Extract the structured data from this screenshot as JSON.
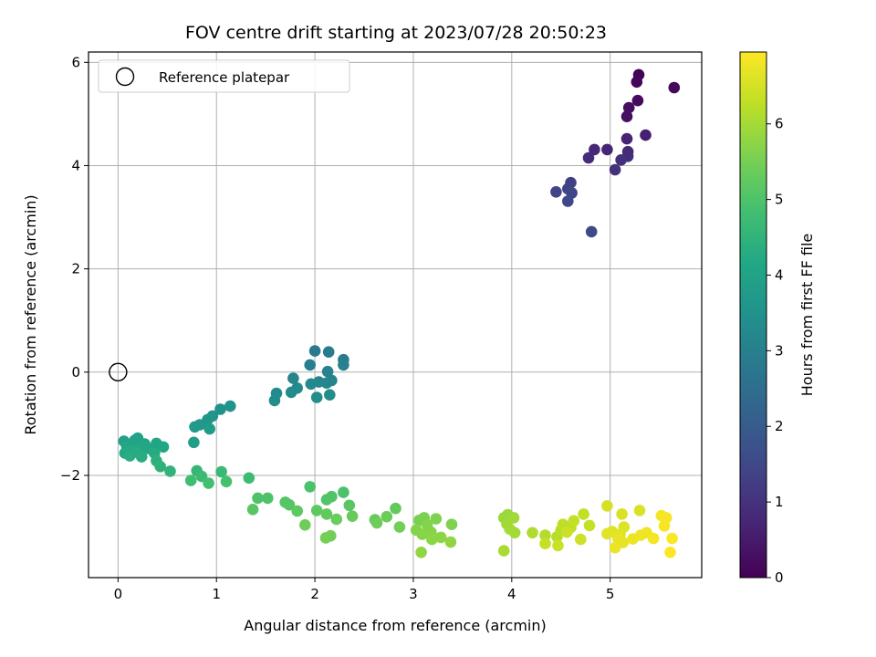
{
  "chart_data": {
    "type": "scatter",
    "title": "FOV centre drift starting at 2023/07/28 20:50:23",
    "xlabel": "Angular distance from reference (arcmin)",
    "ylabel": "Rotation from reference (arcmin)",
    "colorbar_label": "Hours from first FF file",
    "xlim": [
      -0.3,
      5.93
    ],
    "ylim": [
      -3.98,
      6.2
    ],
    "x_ticks": [
      0,
      1,
      2,
      3,
      4,
      5
    ],
    "y_ticks": [
      -2,
      0,
      2,
      4,
      6
    ],
    "y_tick_labels": [
      "−2",
      "0",
      "2",
      "4",
      "6"
    ],
    "colorbar_range": [
      0,
      6.95
    ],
    "colorbar_ticks": [
      0,
      1,
      2,
      3,
      4,
      5,
      6
    ],
    "colormap": "viridis",
    "grid": true,
    "legend": {
      "placement": "top-left",
      "entries": [
        {
          "label": "Reference platepar",
          "marker": "open-circle",
          "color": "#000000"
        }
      ]
    },
    "reference_point": {
      "x": 0,
      "y": 0
    },
    "points": [
      {
        "x": 5.29,
        "y": 5.76,
        "t": 0.05
      },
      {
        "x": 5.27,
        "y": 5.62,
        "t": 0.1
      },
      {
        "x": 5.65,
        "y": 5.51,
        "t": 0.15
      },
      {
        "x": 5.28,
        "y": 5.26,
        "t": 0.2
      },
      {
        "x": 5.19,
        "y": 5.12,
        "t": 0.25
      },
      {
        "x": 5.17,
        "y": 4.95,
        "t": 0.3
      },
      {
        "x": 5.36,
        "y": 4.59,
        "t": 0.6
      },
      {
        "x": 5.17,
        "y": 4.52,
        "t": 0.65
      },
      {
        "x": 4.97,
        "y": 4.31,
        "t": 0.7
      },
      {
        "x": 4.84,
        "y": 4.31,
        "t": 0.75
      },
      {
        "x": 5.18,
        "y": 4.27,
        "t": 0.8
      },
      {
        "x": 4.78,
        "y": 4.15,
        "t": 0.85
      },
      {
        "x": 5.18,
        "y": 4.18,
        "t": 0.9
      },
      {
        "x": 5.11,
        "y": 4.11,
        "t": 0.95
      },
      {
        "x": 5.05,
        "y": 3.92,
        "t": 1.0
      },
      {
        "x": 4.6,
        "y": 3.67,
        "t": 1.3
      },
      {
        "x": 4.57,
        "y": 3.55,
        "t": 1.35
      },
      {
        "x": 4.45,
        "y": 3.49,
        "t": 1.4
      },
      {
        "x": 4.61,
        "y": 3.47,
        "t": 1.45
      },
      {
        "x": 4.57,
        "y": 3.31,
        "t": 1.5
      },
      {
        "x": 4.81,
        "y": 2.72,
        "t": 1.55
      },
      {
        "x": 2.0,
        "y": 0.41,
        "t": 2.8
      },
      {
        "x": 2.14,
        "y": 0.39,
        "t": 2.85
      },
      {
        "x": 2.29,
        "y": 0.24,
        "t": 2.9
      },
      {
        "x": 1.95,
        "y": 0.14,
        "t": 2.95
      },
      {
        "x": 2.29,
        "y": 0.14,
        "t": 3.0
      },
      {
        "x": 2.13,
        "y": 0.01,
        "t": 3.05
      },
      {
        "x": 1.78,
        "y": -0.12,
        "t": 3.1
      },
      {
        "x": 2.17,
        "y": -0.16,
        "t": 3.15
      },
      {
        "x": 2.04,
        "y": -0.19,
        "t": 3.2
      },
      {
        "x": 2.12,
        "y": -0.21,
        "t": 3.2
      },
      {
        "x": 1.96,
        "y": -0.23,
        "t": 3.25
      },
      {
        "x": 1.82,
        "y": -0.31,
        "t": 3.25
      },
      {
        "x": 1.76,
        "y": -0.39,
        "t": 3.3
      },
      {
        "x": 1.61,
        "y": -0.41,
        "t": 3.3
      },
      {
        "x": 2.15,
        "y": -0.44,
        "t": 3.35
      },
      {
        "x": 2.02,
        "y": -0.49,
        "t": 3.35
      },
      {
        "x": 1.59,
        "y": -0.55,
        "t": 3.4
      },
      {
        "x": 1.14,
        "y": -0.66,
        "t": 3.5
      },
      {
        "x": 1.04,
        "y": -0.72,
        "t": 3.55
      },
      {
        "x": 0.96,
        "y": -0.85,
        "t": 3.6
      },
      {
        "x": 0.91,
        "y": -0.92,
        "t": 3.65
      },
      {
        "x": 0.83,
        "y": -1.02,
        "t": 3.7
      },
      {
        "x": 0.78,
        "y": -1.06,
        "t": 3.75
      },
      {
        "x": 0.93,
        "y": -1.1,
        "t": 3.8
      },
      {
        "x": 0.77,
        "y": -1.36,
        "t": 3.85
      },
      {
        "x": 0.06,
        "y": -1.34,
        "t": 3.95
      },
      {
        "x": 0.2,
        "y": -1.28,
        "t": 3.95
      },
      {
        "x": 0.17,
        "y": -1.32,
        "t": 4.0
      },
      {
        "x": 0.13,
        "y": -1.4,
        "t": 4.0
      },
      {
        "x": 0.27,
        "y": -1.39,
        "t": 4.05
      },
      {
        "x": 0.39,
        "y": -1.38,
        "t": 4.05
      },
      {
        "x": 0.09,
        "y": -1.45,
        "t": 4.1
      },
      {
        "x": 0.22,
        "y": -1.45,
        "t": 4.1
      },
      {
        "x": 0.31,
        "y": -1.48,
        "t": 4.15
      },
      {
        "x": 0.46,
        "y": -1.45,
        "t": 4.15
      },
      {
        "x": 0.13,
        "y": -1.52,
        "t": 4.2
      },
      {
        "x": 0.07,
        "y": -1.57,
        "t": 4.2
      },
      {
        "x": 0.18,
        "y": -1.55,
        "t": 4.25
      },
      {
        "x": 0.37,
        "y": -1.57,
        "t": 4.25
      },
      {
        "x": 0.24,
        "y": -1.64,
        "t": 4.3
      },
      {
        "x": 0.12,
        "y": -1.62,
        "t": 4.3
      },
      {
        "x": 0.39,
        "y": -1.72,
        "t": 4.4
      },
      {
        "x": 0.43,
        "y": -1.83,
        "t": 4.45
      },
      {
        "x": 0.53,
        "y": -1.92,
        "t": 4.5
      },
      {
        "x": 0.8,
        "y": -1.91,
        "t": 4.6
      },
      {
        "x": 1.05,
        "y": -1.93,
        "t": 4.65
      },
      {
        "x": 0.85,
        "y": -2.02,
        "t": 4.7
      },
      {
        "x": 1.33,
        "y": -2.05,
        "t": 4.75
      },
      {
        "x": 0.74,
        "y": -2.1,
        "t": 4.8
      },
      {
        "x": 0.92,
        "y": -2.15,
        "t": 4.85
      },
      {
        "x": 1.1,
        "y": -2.12,
        "t": 4.9
      },
      {
        "x": 1.95,
        "y": -2.22,
        "t": 4.95
      },
      {
        "x": 2.29,
        "y": -2.33,
        "t": 4.95
      },
      {
        "x": 1.42,
        "y": -2.44,
        "t": 5.0
      },
      {
        "x": 1.52,
        "y": -2.44,
        "t": 5.0
      },
      {
        "x": 2.17,
        "y": -2.41,
        "t": 5.05
      },
      {
        "x": 2.12,
        "y": -2.47,
        "t": 5.05
      },
      {
        "x": 1.7,
        "y": -2.52,
        "t": 5.1
      },
      {
        "x": 1.74,
        "y": -2.57,
        "t": 5.1
      },
      {
        "x": 2.35,
        "y": -2.58,
        "t": 5.15
      },
      {
        "x": 1.37,
        "y": -2.66,
        "t": 5.15
      },
      {
        "x": 1.82,
        "y": -2.69,
        "t": 5.2
      },
      {
        "x": 2.02,
        "y": -2.68,
        "t": 5.2
      },
      {
        "x": 2.12,
        "y": -2.75,
        "t": 5.25
      },
      {
        "x": 2.82,
        "y": -2.64,
        "t": 5.25
      },
      {
        "x": 2.38,
        "y": -2.79,
        "t": 5.3
      },
      {
        "x": 2.61,
        "y": -2.86,
        "t": 5.3
      },
      {
        "x": 2.73,
        "y": -2.8,
        "t": 5.35
      },
      {
        "x": 2.22,
        "y": -2.85,
        "t": 5.35
      },
      {
        "x": 2.63,
        "y": -2.92,
        "t": 5.4
      },
      {
        "x": 1.9,
        "y": -2.96,
        "t": 5.4
      },
      {
        "x": 2.86,
        "y": -3.0,
        "t": 5.45
      },
      {
        "x": 2.16,
        "y": -3.17,
        "t": 5.45
      },
      {
        "x": 2.11,
        "y": -3.21,
        "t": 5.5
      },
      {
        "x": 3.11,
        "y": -2.82,
        "t": 5.55
      },
      {
        "x": 3.06,
        "y": -2.87,
        "t": 5.55
      },
      {
        "x": 3.23,
        "y": -2.84,
        "t": 5.6
      },
      {
        "x": 3.39,
        "y": -2.95,
        "t": 5.6
      },
      {
        "x": 3.14,
        "y": -2.96,
        "t": 5.65
      },
      {
        "x": 3.03,
        "y": -3.06,
        "t": 5.65
      },
      {
        "x": 3.18,
        "y": -3.1,
        "t": 5.7
      },
      {
        "x": 3.09,
        "y": -3.14,
        "t": 5.7
      },
      {
        "x": 3.28,
        "y": -3.2,
        "t": 5.75
      },
      {
        "x": 3.19,
        "y": -3.24,
        "t": 5.75
      },
      {
        "x": 3.38,
        "y": -3.29,
        "t": 5.8
      },
      {
        "x": 3.08,
        "y": -3.49,
        "t": 5.8
      },
      {
        "x": 3.92,
        "y": -2.82,
        "t": 5.9
      },
      {
        "x": 3.96,
        "y": -2.76,
        "t": 5.9
      },
      {
        "x": 4.02,
        "y": -2.82,
        "t": 5.95
      },
      {
        "x": 3.95,
        "y": -2.94,
        "t": 5.95
      },
      {
        "x": 3.98,
        "y": -3.04,
        "t": 6.0
      },
      {
        "x": 4.03,
        "y": -3.11,
        "t": 6.0
      },
      {
        "x": 3.92,
        "y": -3.46,
        "t": 6.05
      },
      {
        "x": 4.21,
        "y": -3.11,
        "t": 6.1
      },
      {
        "x": 4.34,
        "y": -3.16,
        "t": 6.15
      },
      {
        "x": 4.46,
        "y": -3.19,
        "t": 6.2
      },
      {
        "x": 4.5,
        "y": -3.06,
        "t": 6.2
      },
      {
        "x": 4.52,
        "y": -2.95,
        "t": 6.25
      },
      {
        "x": 4.6,
        "y": -3.01,
        "t": 6.25
      },
      {
        "x": 4.63,
        "y": -2.88,
        "t": 6.3
      },
      {
        "x": 4.73,
        "y": -2.75,
        "t": 6.3
      },
      {
        "x": 4.79,
        "y": -2.97,
        "t": 6.35
      },
      {
        "x": 4.34,
        "y": -3.32,
        "t": 6.35
      },
      {
        "x": 4.47,
        "y": -3.36,
        "t": 6.4
      },
      {
        "x": 4.56,
        "y": -3.1,
        "t": 6.4
      },
      {
        "x": 4.7,
        "y": -3.24,
        "t": 6.45
      },
      {
        "x": 4.97,
        "y": -2.59,
        "t": 6.5
      },
      {
        "x": 5.3,
        "y": -2.68,
        "t": 6.55
      },
      {
        "x": 5.12,
        "y": -2.75,
        "t": 6.55
      },
      {
        "x": 5.14,
        "y": -3.0,
        "t": 6.6
      },
      {
        "x": 5.02,
        "y": -3.09,
        "t": 6.6
      },
      {
        "x": 5.1,
        "y": -3.14,
        "t": 6.65
      },
      {
        "x": 4.97,
        "y": -3.13,
        "t": 6.65
      },
      {
        "x": 5.08,
        "y": -3.23,
        "t": 6.7
      },
      {
        "x": 5.13,
        "y": -3.3,
        "t": 6.7
      },
      {
        "x": 5.05,
        "y": -3.4,
        "t": 6.75
      },
      {
        "x": 5.23,
        "y": -3.23,
        "t": 6.75
      },
      {
        "x": 5.37,
        "y": -3.11,
        "t": 6.8
      },
      {
        "x": 5.31,
        "y": -3.16,
        "t": 6.8
      },
      {
        "x": 5.44,
        "y": -3.22,
        "t": 6.85
      },
      {
        "x": 5.52,
        "y": -2.78,
        "t": 6.85
      },
      {
        "x": 5.57,
        "y": -2.82,
        "t": 6.88
      },
      {
        "x": 5.55,
        "y": -2.98,
        "t": 6.9
      },
      {
        "x": 5.63,
        "y": -3.22,
        "t": 6.92
      },
      {
        "x": 5.61,
        "y": -3.49,
        "t": 6.94
      }
    ]
  }
}
